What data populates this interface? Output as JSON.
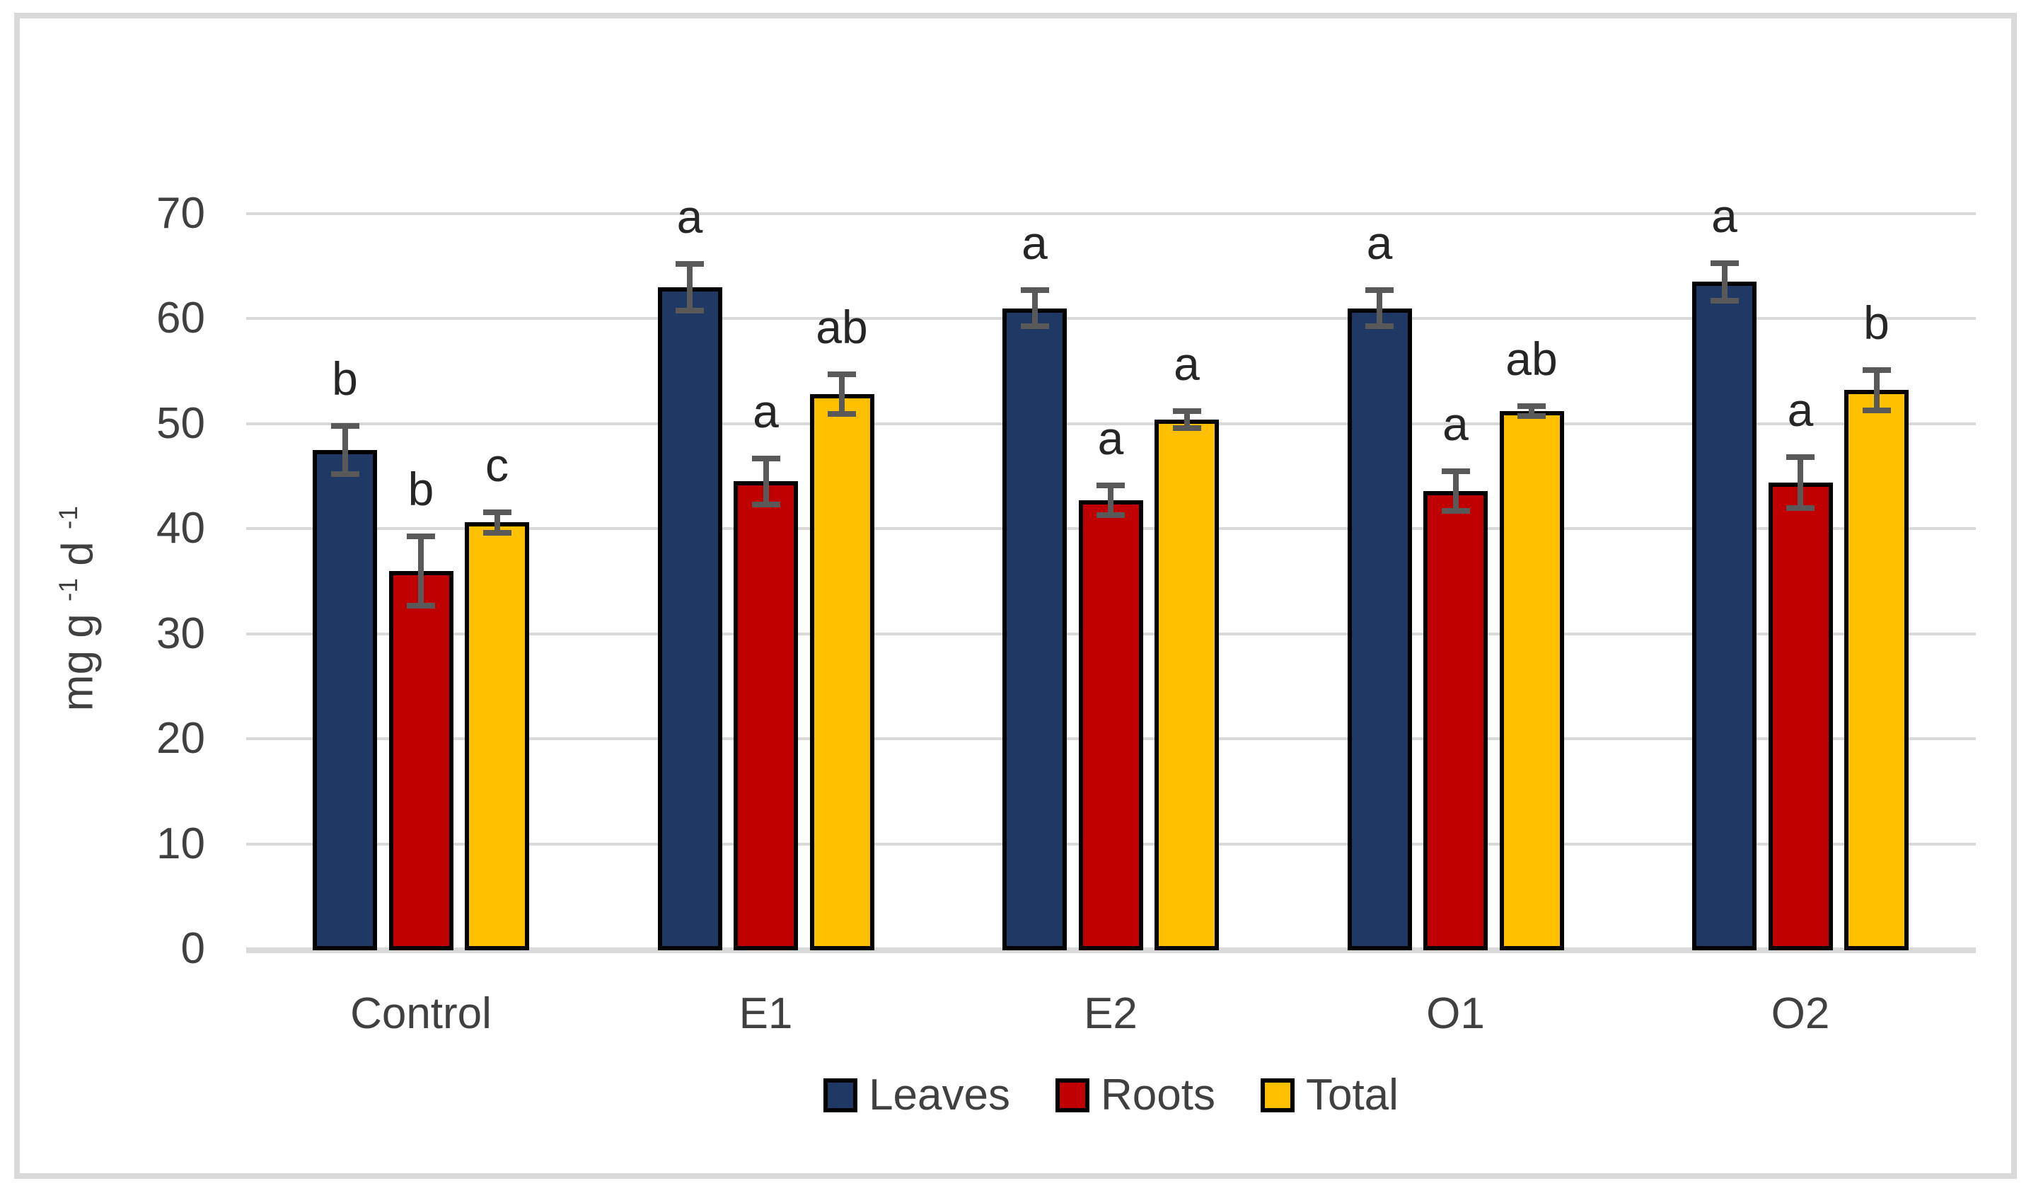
{
  "figure": {
    "background": "#ffffff",
    "border_color": "#d9d9d9",
    "text_color": "#404040"
  },
  "chart_data": {
    "type": "bar",
    "title": "",
    "xlabel": "",
    "ylabel_segments": [
      {
        "text": "mg g ",
        "super": false
      },
      {
        "text": "-1",
        "super": true
      },
      {
        "text": " d ",
        "super": false
      },
      {
        "text": "-1",
        "super": true
      }
    ],
    "categories": [
      "Control",
      "E1",
      "E2",
      "O1",
      "O2"
    ],
    "series": [
      {
        "name": "Leaves",
        "color": "#1f3864",
        "values": [
          47.5,
          63.0,
          61.0,
          61.0,
          63.5
        ],
        "errors": [
          2.3,
          2.2,
          1.7,
          1.7,
          1.8
        ],
        "letters": [
          "b",
          "a",
          "a",
          "a",
          "a"
        ]
      },
      {
        "name": "Roots",
        "color": "#c00000",
        "values": [
          36.0,
          44.5,
          42.7,
          43.6,
          44.4
        ],
        "errors": [
          3.3,
          2.2,
          1.4,
          1.9,
          2.4
        ],
        "letters": [
          "b",
          "a",
          "a",
          "a",
          "a"
        ]
      },
      {
        "name": "Total",
        "color": "#ffc000",
        "values": [
          40.6,
          52.8,
          50.4,
          51.2,
          53.2
        ],
        "errors": [
          1.0,
          1.9,
          0.8,
          0.5,
          1.9
        ],
        "letters": [
          "c",
          "ab",
          "a",
          "ab",
          "b"
        ]
      }
    ],
    "yticks": [
      0,
      10,
      20,
      30,
      40,
      50,
      60,
      70
    ],
    "ylim": [
      0,
      70
    ],
    "grid": true,
    "gridline_color": "#d9d9d9",
    "axis_line_color": "#d9d9d9",
    "bar_border_color": "#000000",
    "error_bar_color": "#595959",
    "legend": {
      "position": "bottom",
      "entries": [
        "Leaves",
        "Roots",
        "Total"
      ]
    }
  }
}
